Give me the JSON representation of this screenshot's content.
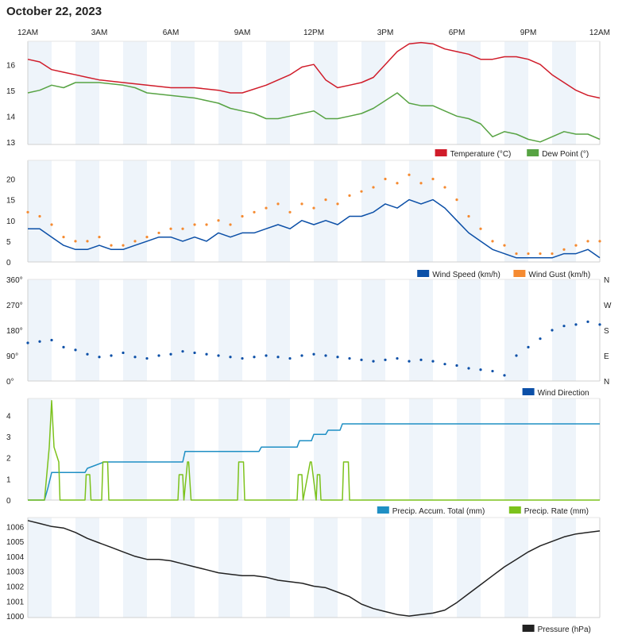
{
  "page": {
    "title": "October 22, 2023"
  },
  "colors": {
    "temperature": "#d01c2a",
    "dew_point": "#57a343",
    "wind_speed": "#0b4fa7",
    "wind_gust": "#f58a30",
    "wind_direction": "#0b4fa7",
    "precip_accum": "#1f8fc4",
    "precip_rate": "#7cc21c",
    "pressure": "#222222",
    "band": "#eef4fa"
  },
  "time_axis": {
    "ticks": [
      "12AM",
      "3AM",
      "6AM",
      "9AM",
      "12PM",
      "3PM",
      "6PM",
      "9PM",
      "12AM"
    ]
  },
  "chart_data": [
    {
      "type": "line",
      "id": "temp",
      "ylim": [
        12.9,
        16.9
      ],
      "yticks": [
        "13",
        "14",
        "15",
        "16"
      ],
      "ytick_values": [
        13,
        14,
        15,
        16
      ],
      "series": [
        {
          "name": "Temperature (°C)",
          "key": "temperature",
          "x": [
            0,
            0.5,
            1,
            1.5,
            2,
            2.5,
            3,
            4,
            5,
            6,
            7,
            8,
            8.5,
            9,
            10,
            11,
            11.5,
            12,
            12.5,
            13,
            13.5,
            14,
            14.5,
            15,
            15.5,
            16,
            16.5,
            17,
            17.5,
            18,
            18.5,
            19,
            19.5,
            20,
            20.5,
            21,
            21.5,
            22,
            22.5,
            23,
            23.5,
            24
          ],
          "values": [
            16.2,
            16.1,
            15.8,
            15.7,
            15.6,
            15.5,
            15.4,
            15.3,
            15.2,
            15.1,
            15.1,
            15.0,
            14.9,
            14.9,
            15.2,
            15.6,
            15.9,
            16.0,
            15.4,
            15.1,
            15.2,
            15.3,
            15.5,
            16.0,
            16.5,
            16.8,
            16.85,
            16.8,
            16.6,
            16.5,
            16.4,
            16.2,
            16.2,
            16.3,
            16.3,
            16.2,
            16.0,
            15.6,
            15.3,
            15.0,
            14.8,
            14.7
          ]
        },
        {
          "name": "Dew Point (°)",
          "key": "dew_point",
          "x": [
            0,
            0.5,
            1,
            1.5,
            2,
            3,
            4,
            4.5,
            5,
            6,
            7,
            8,
            8.5,
            9,
            9.5,
            10,
            10.5,
            11,
            11.5,
            12,
            12.5,
            13,
            13.5,
            14,
            14.5,
            15,
            15.5,
            16,
            16.5,
            17,
            17.5,
            18,
            18.5,
            19,
            19.5,
            20,
            20.5,
            21,
            21.5,
            22,
            22.5,
            23,
            23.5,
            24
          ],
          "values": [
            14.9,
            15.0,
            15.2,
            15.1,
            15.3,
            15.3,
            15.2,
            15.1,
            14.9,
            14.8,
            14.7,
            14.5,
            14.3,
            14.2,
            14.1,
            13.9,
            13.9,
            14.0,
            14.1,
            14.2,
            13.9,
            13.9,
            14.0,
            14.1,
            14.3,
            14.6,
            14.9,
            14.5,
            14.4,
            14.4,
            14.2,
            14.0,
            13.9,
            13.7,
            13.2,
            13.4,
            13.3,
            13.1,
            13.0,
            13.2,
            13.4,
            13.3,
            13.3,
            13.1
          ]
        }
      ]
    },
    {
      "type": "line",
      "id": "wind",
      "ylim": [
        0,
        24.5
      ],
      "yticks": [
        "0",
        "5",
        "10",
        "15",
        "20"
      ],
      "ytick_values": [
        0,
        5,
        10,
        15,
        20
      ],
      "series": [
        {
          "name": "Wind Speed (km/h)",
          "key": "wind_speed",
          "x": [
            0,
            0.5,
            1,
            1.5,
            2,
            2.5,
            3,
            3.5,
            4,
            4.5,
            5,
            5.5,
            6,
            6.5,
            7,
            7.5,
            8,
            8.5,
            9,
            9.5,
            10,
            10.5,
            11,
            11.5,
            12,
            12.5,
            13,
            13.5,
            14,
            14.5,
            15,
            15.5,
            16,
            16.5,
            17,
            17.5,
            18,
            18.5,
            19,
            19.5,
            20,
            20.5,
            21,
            21.5,
            22,
            22.5,
            23,
            23.5,
            24
          ],
          "values": [
            8,
            8,
            6,
            4,
            3,
            3,
            4,
            3,
            3,
            4,
            5,
            6,
            6,
            5,
            6,
            5,
            7,
            6,
            7,
            7,
            8,
            9,
            8,
            10,
            9,
            10,
            9,
            11,
            11,
            12,
            14,
            13,
            15,
            14,
            15,
            13,
            10,
            7,
            5,
            3,
            2,
            1,
            1,
            1,
            1,
            2,
            2,
            3,
            1
          ]
        },
        {
          "name": "Wind Gust (km/h)",
          "key": "wind_gust",
          "x": [
            0,
            0.5,
            1,
            1.5,
            2,
            2.5,
            3,
            3.5,
            4,
            4.5,
            5,
            5.5,
            6,
            6.5,
            7,
            7.5,
            8,
            8.5,
            9,
            9.5,
            10,
            10.5,
            11,
            11.5,
            12,
            12.5,
            13,
            13.5,
            14,
            14.5,
            15,
            15.5,
            16,
            16.5,
            17,
            17.5,
            18,
            18.5,
            19,
            19.5,
            20,
            20.5,
            21,
            21.5,
            22,
            22.5,
            23,
            23.5,
            24
          ],
          "values": [
            12,
            11,
            9,
            6,
            5,
            5,
            6,
            4,
            4,
            5,
            6,
            7,
            8,
            8,
            9,
            9,
            10,
            9,
            11,
            12,
            13,
            14,
            12,
            14,
            13,
            15,
            14,
            16,
            17,
            18,
            20,
            19,
            21,
            19,
            20,
            18,
            15,
            11,
            8,
            5,
            4,
            2,
            2,
            2,
            2,
            3,
            4,
            5,
            5
          ]
        }
      ]
    },
    {
      "type": "scatter",
      "id": "direction",
      "ylim": [
        0,
        360
      ],
      "yticks": [
        "0°",
        "90°",
        "180°",
        "270°",
        "360°"
      ],
      "ytick_values": [
        0,
        90,
        180,
        270,
        360
      ],
      "compass_ticks": [
        "N",
        "E",
        "S",
        "W",
        "N"
      ],
      "series": [
        {
          "name": "Wind Direction",
          "key": "wind_direction",
          "x": [
            0,
            0.5,
            1,
            1.5,
            2,
            2.5,
            3,
            3.5,
            4,
            4.5,
            5,
            5.5,
            6,
            6.5,
            7,
            7.5,
            8,
            8.5,
            9,
            9.5,
            10,
            10.5,
            11,
            11.5,
            12,
            12.5,
            13,
            13.5,
            14,
            14.5,
            15,
            15.5,
            16,
            16.5,
            17,
            17.5,
            18,
            18.5,
            19,
            19.5,
            20,
            20.5,
            21,
            21.5,
            22,
            22.5,
            23,
            23.5,
            24
          ],
          "values": [
            135,
            140,
            145,
            120,
            110,
            95,
            85,
            90,
            100,
            85,
            80,
            90,
            95,
            105,
            100,
            95,
            90,
            85,
            80,
            85,
            90,
            85,
            80,
            90,
            95,
            90,
            85,
            80,
            75,
            70,
            75,
            80,
            70,
            75,
            70,
            60,
            55,
            45,
            40,
            35,
            20,
            90,
            120,
            150,
            180,
            195,
            200,
            210,
            200
          ]
        }
      ]
    },
    {
      "type": "line",
      "id": "precip",
      "ylim": [
        0,
        4.8
      ],
      "yticks": [
        "0",
        "1",
        "2",
        "3",
        "4"
      ],
      "ytick_values": [
        0,
        1,
        2,
        3,
        4
      ],
      "series": [
        {
          "name": "Precip. Accum. Total (mm)",
          "key": "precip_accum",
          "x": [
            0,
            0.7,
            0.85,
            1,
            1.5,
            2.4,
            2.5,
            3.2,
            3.3,
            6.5,
            6.6,
            9.7,
            9.8,
            11.3,
            11.4,
            11.9,
            12,
            12.5,
            12.6,
            13.1,
            13.2,
            20,
            24
          ],
          "values": [
            0,
            0,
            0.6,
            1.3,
            1.3,
            1.3,
            1.5,
            1.8,
            1.8,
            1.8,
            2.3,
            2.3,
            2.5,
            2.5,
            2.8,
            2.8,
            3.1,
            3.1,
            3.3,
            3.3,
            3.6,
            3.6,
            3.6
          ]
        },
        {
          "name": "Precip. Rate (mm)",
          "key": "precip_rate",
          "x": [
            0,
            0.7,
            0.9,
            1.0,
            1.1,
            1.3,
            1.35,
            2.4,
            2.45,
            2.6,
            2.65,
            3.1,
            3.15,
            3.35,
            3.4,
            6.3,
            6.35,
            6.5,
            6.55,
            6.7,
            6.75,
            6.85,
            6.9,
            8.8,
            8.85,
            9.05,
            9.1,
            11.3,
            11.35,
            11.5,
            11.55,
            11.85,
            11.9,
            12.1,
            12.15,
            12.25,
            12.3,
            12.45,
            12.5,
            13.2,
            13.25,
            13.45,
            13.5,
            24
          ],
          "values": [
            0,
            0,
            2.5,
            4.7,
            2.5,
            1.8,
            0,
            0,
            1.2,
            1.2,
            0,
            0,
            1.8,
            1.8,
            0,
            0,
            1.2,
            1.2,
            0,
            1.8,
            1.8,
            0,
            0,
            0,
            1.8,
            1.8,
            0,
            0,
            1.2,
            1.2,
            0,
            1.8,
            1.8,
            0,
            1.2,
            1.2,
            0,
            0,
            0,
            0,
            1.8,
            1.8,
            0,
            0
          ]
        }
      ]
    },
    {
      "type": "line",
      "id": "pressure",
      "ylim": [
        999.9,
        1006.6
      ],
      "yticks": [
        "1000",
        "1001",
        "1002",
        "1003",
        "1004",
        "1005",
        "1006"
      ],
      "ytick_values": [
        1000,
        1001,
        1002,
        1003,
        1004,
        1005,
        1006
      ],
      "series": [
        {
          "name": "Pressure (hPa)",
          "key": "pressure",
          "x": [
            0,
            0.5,
            1,
            1.5,
            2,
            2.5,
            3,
            3.5,
            4,
            4.5,
            5,
            5.5,
            6,
            6.5,
            7,
            7.5,
            8,
            8.5,
            9,
            9.5,
            10,
            10.5,
            11,
            11.5,
            12,
            12.5,
            13,
            13.5,
            14,
            14.5,
            15,
            15.5,
            16,
            16.5,
            17,
            17.5,
            18,
            18.5,
            19,
            19.5,
            20,
            20.5,
            21,
            21.5,
            22,
            22.5,
            23,
            23.5,
            24
          ],
          "values": [
            1006.4,
            1006.2,
            1006.0,
            1005.9,
            1005.6,
            1005.2,
            1004.9,
            1004.6,
            1004.3,
            1004.0,
            1003.8,
            1003.8,
            1003.7,
            1003.5,
            1003.3,
            1003.1,
            1002.9,
            1002.8,
            1002.7,
            1002.7,
            1002.6,
            1002.4,
            1002.3,
            1002.2,
            1002.0,
            1001.9,
            1001.6,
            1001.3,
            1000.8,
            1000.5,
            1000.3,
            1000.1,
            1000.0,
            1000.1,
            1000.2,
            1000.4,
            1000.9,
            1001.5,
            1002.1,
            1002.7,
            1003.3,
            1003.8,
            1004.3,
            1004.7,
            1005.0,
            1005.3,
            1005.5,
            1005.6,
            1005.7
          ]
        }
      ]
    }
  ]
}
